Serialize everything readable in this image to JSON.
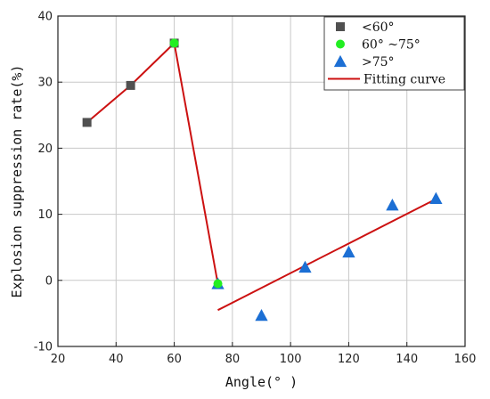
{
  "chart_data": {
    "type": "scatter",
    "title": "",
    "xlabel": "Angle(° )",
    "ylabel": "Explosion suppression rate(%)",
    "xlim": [
      20,
      160
    ],
    "ylim": [
      -10,
      40
    ],
    "xticks": [
      "20",
      "40",
      "60",
      "80",
      "100",
      "120",
      "140",
      "160"
    ],
    "yticks": [
      "-10",
      "0",
      "10",
      "20",
      "30",
      "40"
    ],
    "grid": true,
    "legend_position": "top-right",
    "series": [
      {
        "name": "<60°",
        "marker": "square",
        "color": "#505050",
        "points": [
          [
            30,
            23.9
          ],
          [
            45,
            29.5
          ],
          [
            60,
            35.9
          ]
        ]
      },
      {
        "name": "60° ~75°",
        "marker": "circle",
        "color": "#22ee22",
        "points": [
          [
            60,
            35.9
          ],
          [
            75,
            -0.5
          ]
        ]
      },
      {
        "name": ">75°",
        "marker": "triangle",
        "color": "#1c6fd4",
        "points": [
          [
            75,
            -0.5
          ],
          [
            90,
            -5.3
          ],
          [
            105,
            2.0
          ],
          [
            120,
            4.3
          ],
          [
            135,
            11.4
          ],
          [
            150,
            12.4
          ]
        ]
      }
    ],
    "fitting_curve": {
      "name": "Fitting curve",
      "color": "#cc1111",
      "segments": [
        [
          [
            30,
            23.9
          ],
          [
            45,
            29.5
          ],
          [
            60,
            35.9
          ]
        ],
        [
          [
            60,
            35.9
          ],
          [
            75,
            -0.5
          ]
        ],
        [
          [
            75,
            -4.5
          ],
          [
            150,
            12.3
          ]
        ]
      ]
    }
  }
}
